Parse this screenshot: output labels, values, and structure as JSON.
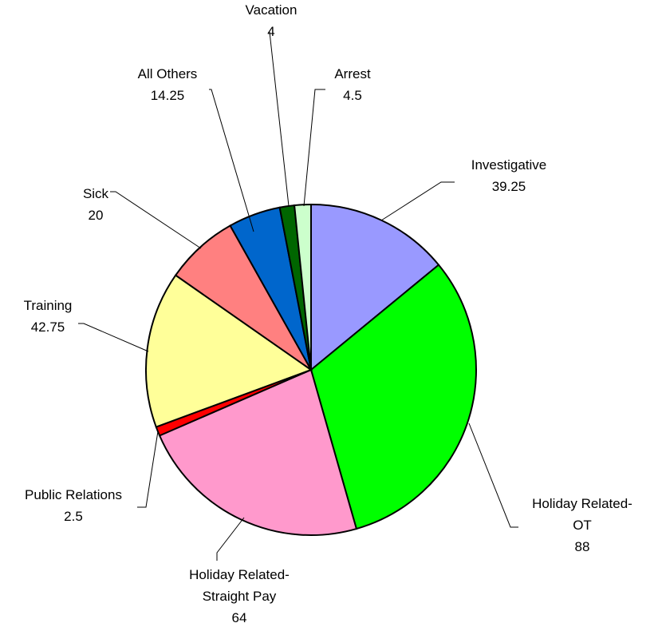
{
  "chart_data": {
    "type": "pie",
    "categories": [
      "Investigative",
      "Holiday Related-OT",
      "Holiday Related-Straight Pay",
      "Public Relations",
      "Training",
      "Sick",
      "All Others",
      "Vacation",
      "Arrest"
    ],
    "values": [
      39.25,
      88,
      64,
      2.5,
      42.75,
      20,
      14.25,
      4,
      4.5
    ],
    "colors": [
      "#9999ff",
      "#00ff00",
      "#ff99cc",
      "#ff0000",
      "#ffff99",
      "#ff8080",
      "#0066cc",
      "#006600",
      "#ccffcc"
    ]
  }
}
